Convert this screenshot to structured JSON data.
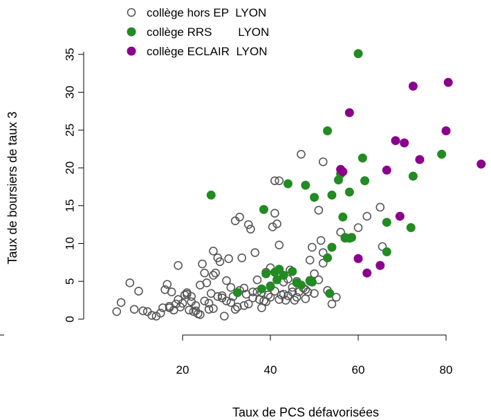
{
  "chart_data": {
    "type": "scatter",
    "xlabel": "Taux de PCS défavorisées",
    "ylabel": "Taux de boursiers de taux 3",
    "xlim": [
      2,
      90
    ],
    "ylim": [
      -1.5,
      36
    ],
    "xticks": [
      "20",
      "40",
      "60",
      "80"
    ],
    "yticks": [
      "0",
      "5",
      "10",
      "15",
      "20",
      "25",
      "30",
      "35"
    ],
    "legend_position": "top",
    "series": [
      {
        "name": "collège hors EP  LYON",
        "marker": "open-circle",
        "color": "#555555",
        "points": [
          [
            5,
            1
          ],
          [
            6,
            2.2
          ],
          [
            8,
            4.8
          ],
          [
            9,
            1.3
          ],
          [
            10,
            3.7
          ],
          [
            11,
            1.1
          ],
          [
            12,
            1
          ],
          [
            13,
            0.5
          ],
          [
            14,
            0.4
          ],
          [
            15,
            0.8
          ],
          [
            15.5,
            1.5
          ],
          [
            16,
            3.9
          ],
          [
            16.5,
            4.6
          ],
          [
            17,
            1.7
          ],
          [
            17.5,
            3.6
          ],
          [
            18,
            1.2
          ],
          [
            18.5,
            2
          ],
          [
            19,
            7.1
          ],
          [
            19.5,
            1.6
          ],
          [
            20,
            2.1
          ],
          [
            20.5,
            3.2
          ],
          [
            21,
            3.5
          ],
          [
            21.5,
            1.2
          ],
          [
            22,
            2.3
          ],
          [
            22.5,
            1
          ],
          [
            23,
            1.1
          ],
          [
            23.5,
            0.7
          ],
          [
            24,
            0.6
          ],
          [
            24.5,
            7.3
          ],
          [
            25,
            2.4
          ],
          [
            25.5,
            4.8
          ],
          [
            26,
            1.3
          ],
          [
            26.5,
            3.4
          ],
          [
            27,
            1.4
          ],
          [
            27.5,
            6.1
          ],
          [
            27,
            9
          ],
          [
            28,
            8.1
          ],
          [
            28.5,
            7.6
          ],
          [
            29,
            2.8
          ],
          [
            29.5,
            0.4
          ],
          [
            30,
            5.1
          ],
          [
            30.5,
            8
          ],
          [
            31,
            2.2
          ],
          [
            31.5,
            3
          ],
          [
            32,
            1.3
          ],
          [
            32.5,
            1.6
          ],
          [
            32,
            13
          ],
          [
            33,
            13.5
          ],
          [
            33.5,
            8.1
          ],
          [
            34,
            4.1
          ],
          [
            34.5,
            3.3
          ],
          [
            35,
            12.5
          ],
          [
            35.5,
            11.9
          ],
          [
            36,
            2.8
          ],
          [
            36.5,
            8.8
          ],
          [
            37,
            3.6
          ],
          [
            37.5,
            2.6
          ],
          [
            38,
            1.5
          ],
          [
            38.5,
            2.4
          ],
          [
            39,
            2.3
          ],
          [
            39.5,
            3.2
          ],
          [
            40,
            6.8
          ],
          [
            40.5,
            12.2
          ],
          [
            41,
            14
          ],
          [
            41.5,
            12.6
          ],
          [
            42,
            9.8
          ],
          [
            42.5,
            3.2
          ],
          [
            43,
            3.3
          ],
          [
            41,
            18.3
          ],
          [
            42,
            18.3
          ],
          [
            43.5,
            2.5
          ],
          [
            44,
            5.3
          ],
          [
            44.5,
            6.5
          ],
          [
            45,
            3.6
          ],
          [
            45.5,
            2.5
          ],
          [
            46,
            5
          ],
          [
            46.5,
            3.6
          ],
          [
            47,
            21.8
          ],
          [
            47.5,
            4.1
          ],
          [
            48,
            3.9
          ],
          [
            48.5,
            3.6
          ],
          [
            49,
            5
          ],
          [
            49.5,
            9.5
          ],
          [
            50,
            6
          ],
          [
            51,
            14.4
          ],
          [
            51.5,
            10.4
          ],
          [
            52,
            8.8
          ],
          [
            52,
            20.8
          ],
          [
            53,
            3.8
          ],
          [
            54,
            2
          ],
          [
            55,
            2.9
          ],
          [
            56,
            11.5
          ],
          [
            57,
            10.7
          ],
          [
            60,
            12.1
          ],
          [
            62,
            13.6
          ],
          [
            65,
            14.8
          ],
          [
            65.5,
            9.6
          ],
          [
            29,
            3.1
          ],
          [
            27,
            5.8
          ],
          [
            25,
            6.1
          ],
          [
            22,
            3
          ],
          [
            31,
            4.2
          ],
          [
            33,
            3.8
          ],
          [
            35,
            2
          ],
          [
            37,
            5.2
          ],
          [
            39,
            6.2
          ],
          [
            40,
            4.4
          ],
          [
            42,
            2.6
          ],
          [
            44,
            3.1
          ],
          [
            46,
            2.9
          ],
          [
            48,
            2.7
          ],
          [
            50,
            3.4
          ],
          [
            51,
            5.2
          ],
          [
            36,
            3.6
          ],
          [
            34,
            1.8
          ],
          [
            30,
            2.4
          ],
          [
            28,
            3
          ],
          [
            26,
            2.1
          ],
          [
            23,
            1.8
          ],
          [
            21,
            3.3
          ],
          [
            19,
            2.6
          ],
          [
            17,
            1.5
          ],
          [
            41,
            3.7
          ],
          [
            43,
            4.9
          ],
          [
            45,
            4.2
          ],
          [
            38,
            3.5
          ],
          [
            40,
            2.9
          ],
          [
            49,
            7.8
          ],
          [
            52,
            7.4
          ],
          [
            24,
            4.5
          ]
        ]
      },
      {
        "name": "collège RRS        LYON",
        "marker": "filled-circle",
        "color": "#228B22",
        "points": [
          [
            26.5,
            16.4
          ],
          [
            32.5,
            3.5
          ],
          [
            38,
            4
          ],
          [
            38.5,
            14.5
          ],
          [
            39,
            6
          ],
          [
            40,
            4.3
          ],
          [
            41,
            6.2
          ],
          [
            41.5,
            5.2
          ],
          [
            42,
            6.6
          ],
          [
            43,
            5.8
          ],
          [
            44,
            17.9
          ],
          [
            45,
            6.3
          ],
          [
            46,
            4.8
          ],
          [
            47,
            4.5
          ],
          [
            48,
            17.7
          ],
          [
            49,
            5.1
          ],
          [
            49.5,
            4.9
          ],
          [
            50,
            16.1
          ],
          [
            53,
            24.9
          ],
          [
            53,
            8.1
          ],
          [
            53.5,
            3.4
          ],
          [
            54,
            9.5
          ],
          [
            54,
            16.4
          ],
          [
            55.5,
            18.4
          ],
          [
            56,
            19.2
          ],
          [
            56.5,
            13.5
          ],
          [
            57,
            10.8
          ],
          [
            58,
            10.7
          ],
          [
            58,
            16.8
          ],
          [
            58.5,
            10.8
          ],
          [
            60,
            35.1
          ],
          [
            61,
            21.3
          ],
          [
            61.5,
            18.3
          ],
          [
            66.5,
            12.8
          ],
          [
            66.5,
            8.9
          ],
          [
            72,
            12.1
          ],
          [
            72.5,
            18.9
          ],
          [
            79,
            21.8
          ]
        ]
      },
      {
        "name": "collège ECLAIR  LYON",
        "marker": "filled-circle",
        "color": "#8B008B",
        "points": [
          [
            56,
            19.8
          ],
          [
            56.5,
            19.5
          ],
          [
            58,
            27.3
          ],
          [
            60,
            8
          ],
          [
            62,
            6.1
          ],
          [
            65,
            7.1
          ],
          [
            66.5,
            19.7
          ],
          [
            68.5,
            23.6
          ],
          [
            69.5,
            13.6
          ],
          [
            70.5,
            23.3
          ],
          [
            72.5,
            30.8
          ],
          [
            74,
            21.1
          ],
          [
            80,
            24.9
          ],
          [
            80.5,
            31.3
          ],
          [
            88,
            20.5
          ]
        ]
      }
    ]
  }
}
